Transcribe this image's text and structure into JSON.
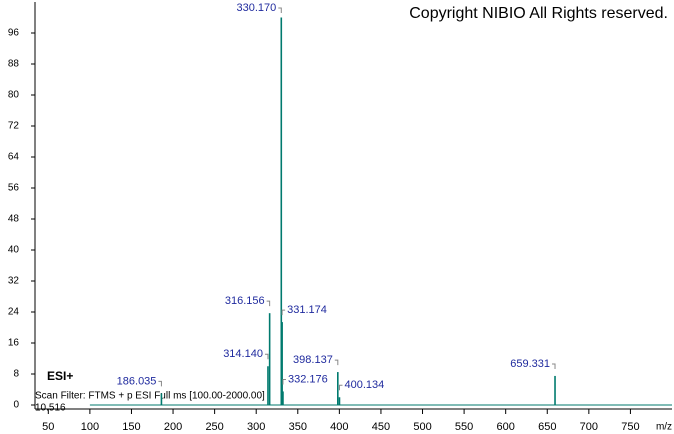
{
  "chart_data": {
    "type": "stem",
    "title": "Copyright NIBIO All Rights reserved.",
    "x_label": "m/z",
    "annotations": [
      "ESI+",
      "Scan Filter: FTMS + p ESI Full ms [100.00-2000.00]",
      "10.516"
    ],
    "color": "#007a6e",
    "label_color": "#1f2a9e",
    "x": [
      186.035,
      314.14,
      316.156,
      330.17,
      331.174,
      332.176,
      398.137,
      400.134,
      659.331
    ],
    "values": [
      3,
      10,
      23.7,
      100,
      21.4,
      3.5,
      8.5,
      2,
      7.5
    ],
    "value_labels": [
      "186.035",
      "314.140",
      "316.156",
      "330.170",
      "331.174",
      "332.176",
      "398.137",
      "400.134",
      "659.331"
    ],
    "xlim": [
      34,
      800
    ],
    "ylim": [
      0,
      104
    ],
    "xticks": [
      50,
      100,
      150,
      200,
      250,
      300,
      350,
      400,
      450,
      500,
      550,
      600,
      650,
      700,
      750
    ],
    "yticks": [
      0,
      8,
      16,
      24,
      32,
      40,
      48,
      56,
      64,
      72,
      80,
      88,
      96
    ]
  }
}
